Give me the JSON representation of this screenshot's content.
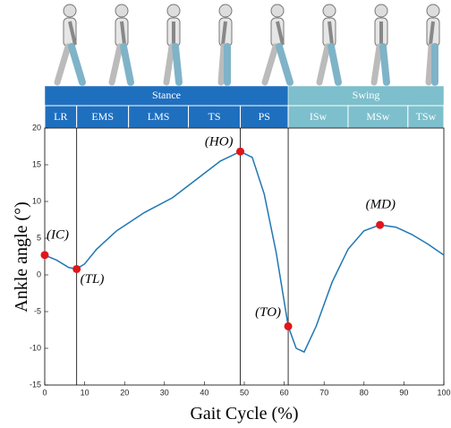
{
  "chart_data": {
    "type": "line",
    "x_label": "Gait Cycle (%)",
    "y_label": "Ankle angle (°)",
    "xlim": [
      0,
      100
    ],
    "ylim": [
      -15,
      20
    ],
    "xticks": [
      0,
      10,
      20,
      30,
      40,
      50,
      60,
      70,
      80,
      90,
      100
    ],
    "yticks": [
      -15,
      -10,
      -5,
      0,
      5,
      10,
      15,
      20
    ],
    "x": [
      0,
      3,
      6,
      8,
      10,
      13,
      18,
      25,
      32,
      38,
      44,
      49,
      52,
      55,
      58,
      61,
      63,
      65,
      68,
      72,
      76,
      80,
      84,
      88,
      92,
      96,
      100
    ],
    "series": [
      {
        "color": "#1f77b4",
        "values": [
          2.7,
          2,
          1,
          0.8,
          1.5,
          3.5,
          6,
          8.5,
          10.5,
          13,
          15.5,
          16.8,
          16,
          11,
          3,
          -7,
          -10,
          -10.5,
          -7,
          -1,
          3.5,
          6,
          6.8,
          6.5,
          5.5,
          4.2,
          2.7
        ]
      }
    ],
    "events": {
      "color": "#e0161b",
      "labels": [
        "(IC)",
        "(TL)",
        "(HO)",
        "(TO)",
        "(MD)"
      ],
      "x": [
        0,
        8,
        49,
        61,
        84
      ],
      "values": [
        2.7,
        0.8,
        16.8,
        -7,
        6.8
      ]
    },
    "vlines": [
      8,
      49,
      61
    ],
    "phases": [
      {
        "label": "Stance",
        "start": 0,
        "end": 61,
        "color": "#1f6fbf"
      },
      {
        "label": "Swing",
        "start": 61,
        "end": 100,
        "color": "#7dbfcc"
      }
    ],
    "subphases": [
      {
        "label": "LR",
        "start": 0,
        "end": 8
      },
      {
        "label": "EMS",
        "start": 8,
        "end": 21
      },
      {
        "label": "LMS",
        "start": 21,
        "end": 36
      },
      {
        "label": "TS",
        "start": 36,
        "end": 49
      },
      {
        "label": "PS",
        "start": 49,
        "end": 61
      },
      {
        "label": "ISw",
        "start": 61,
        "end": 76
      },
      {
        "label": "MSw",
        "start": 76,
        "end": 91
      },
      {
        "label": "TSw",
        "start": 91,
        "end": 100
      }
    ]
  }
}
